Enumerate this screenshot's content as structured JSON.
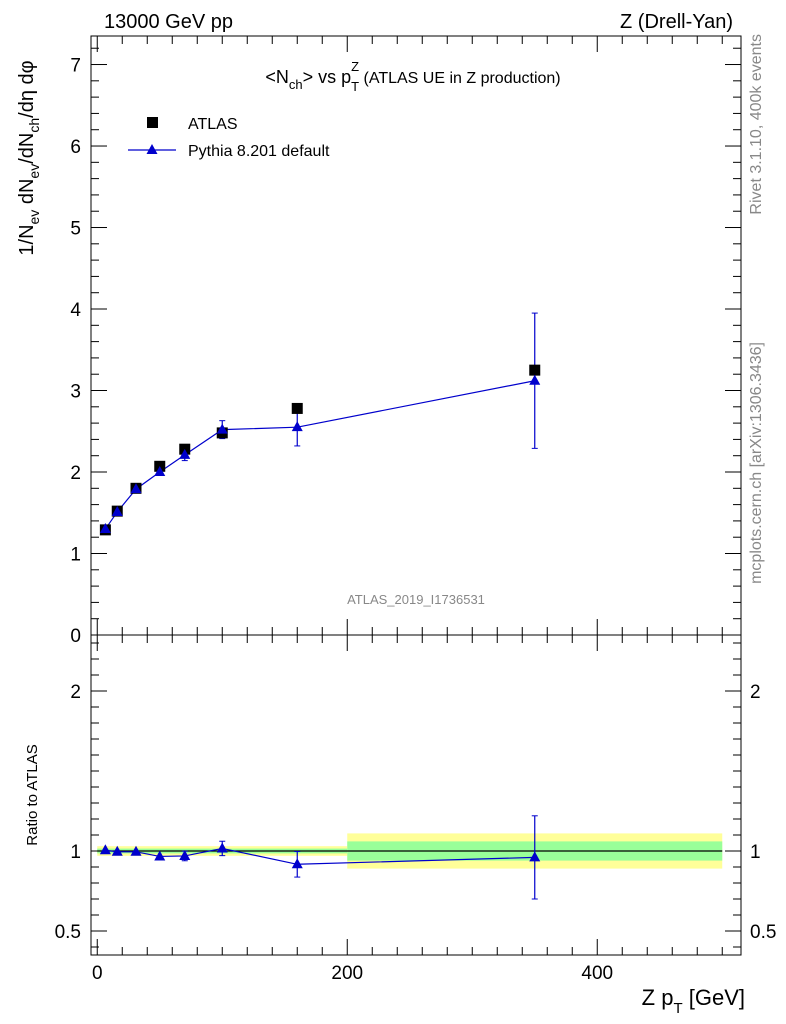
{
  "header": {
    "left": "13000 GeV pp",
    "right": "Z (Drell-Yan)"
  },
  "side_text": {
    "top": "Rivet 3.1.10,  400k events",
    "bottom": "mcplots.cern.ch [arXiv:1306.3436]"
  },
  "analysis_id": "ATLAS_2019_I1736531",
  "chart_data": [
    {
      "type": "scatter",
      "title": "<Nch> vs pTZ (ATLAS UE in Z production)",
      "title_parts": {
        "a": "<N",
        "a_sub": "ch",
        "b": "> vs p",
        "b_sub": "T",
        "b_sup": "Z",
        "c": " (ATLAS UE in Z production)"
      },
      "ylabel": "1/Nev dNev/dNch/dη dφ",
      "ylabel_parts": [
        "1/N",
        "ev",
        " dN",
        "ev",
        "/dN",
        "ch",
        "/dη dφ"
      ],
      "xlim": [
        -5,
        515
      ],
      "ylim": [
        0,
        7.35
      ],
      "yticks": [
        0,
        1,
        2,
        3,
        4,
        5,
        6,
        7
      ],
      "ytick_labels": [
        "0",
        "1",
        "2",
        "3",
        "4",
        "5",
        "6",
        "7"
      ],
      "legend_position": "top-left",
      "series": [
        {
          "name": "ATLAS",
          "marker": "square",
          "color": "#000000",
          "x": [
            6.5,
            16,
            31,
            50,
            70,
            100,
            160,
            350
          ],
          "y": [
            1.29,
            1.52,
            1.8,
            2.07,
            2.28,
            2.48,
            2.78,
            3.25
          ]
        },
        {
          "name": "Pythia 8.201 default",
          "marker": "triangle",
          "color": "#0000cc",
          "x": [
            6.5,
            16,
            31,
            50,
            70,
            100,
            160,
            350
          ],
          "y": [
            1.3,
            1.51,
            1.79,
            2.0,
            2.21,
            2.52,
            2.55,
            3.12
          ],
          "yerr": [
            0.02,
            0.02,
            0.02,
            0.03,
            0.07,
            0.11,
            0.23,
            0.83
          ]
        }
      ]
    },
    {
      "type": "scatter",
      "ylabel": "Ratio to ATLAS",
      "xlabel": "Z pT [GeV]",
      "xlabel_parts": {
        "a": "Z p",
        "sub": "T",
        "b": " [GeV]"
      },
      "xticks": [
        0,
        200,
        400
      ],
      "xtick_labels": [
        "0",
        "200",
        "400"
      ],
      "ylim": [
        0.35,
        2.35
      ],
      "yticks": [
        0.5,
        1,
        2
      ],
      "ytick_labels": [
        "0.5",
        "1",
        "2"
      ],
      "bands": [
        {
          "x": [
            0,
            200
          ],
          "green": [
            0.985,
            1.015
          ],
          "yellow": [
            0.97,
            1.03
          ]
        },
        {
          "x": [
            200,
            500
          ],
          "green": [
            0.94,
            1.06
          ],
          "yellow": [
            0.89,
            1.11
          ]
        }
      ],
      "series": [
        {
          "name": "Pythia 8.201 default",
          "color": "#0000cc",
          "x": [
            6.5,
            16,
            31,
            50,
            70,
            100,
            160,
            350
          ],
          "y": [
            1.005,
            0.995,
            0.995,
            0.966,
            0.969,
            1.016,
            0.917,
            0.96
          ],
          "yerr": [
            0.01,
            0.01,
            0.01,
            0.015,
            0.03,
            0.045,
            0.08,
            0.26
          ]
        }
      ]
    }
  ]
}
